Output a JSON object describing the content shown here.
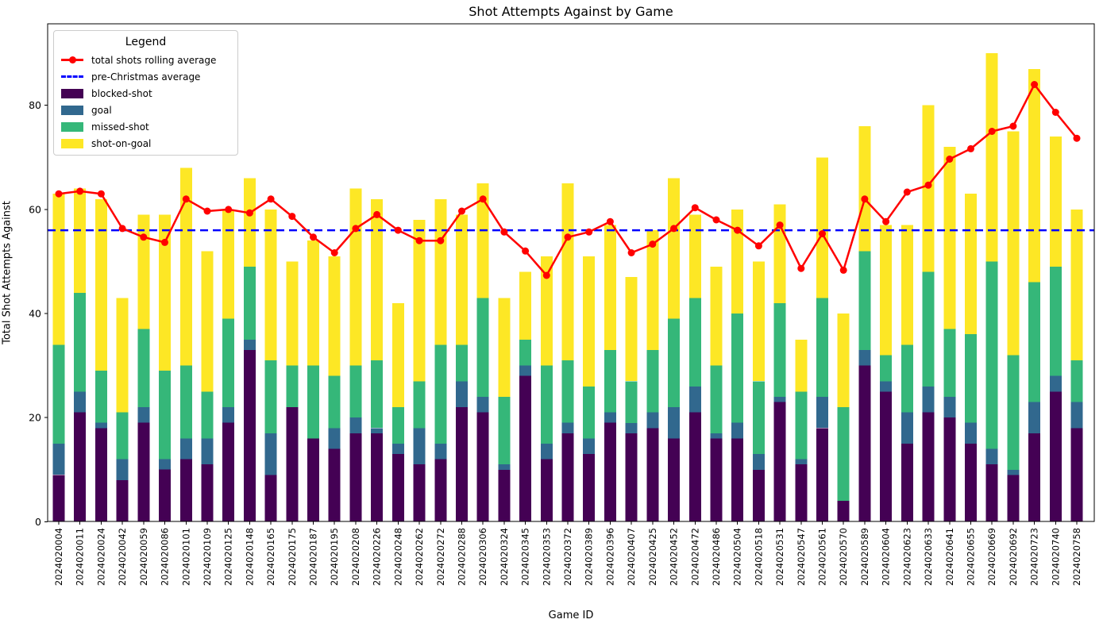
{
  "title": "Shot Attempts Against by Game",
  "axes": {
    "x_label": "Game ID",
    "y_label": "Total Shot Attempts Against",
    "y_ticks": [
      0,
      20,
      40,
      60,
      80
    ],
    "ylim": [
      0,
      95.6
    ],
    "grid": false
  },
  "legend": {
    "title": "Legend",
    "position": "upper left",
    "entries": [
      {
        "label": "total shots rolling average",
        "type": "line-marker",
        "color": "#ff0000"
      },
      {
        "label": "pre-Christmas average",
        "type": "dashed-line",
        "color": "#0000ff"
      },
      {
        "label": "blocked-shot",
        "type": "patch",
        "color": "#440154"
      },
      {
        "label": "goal",
        "type": "patch",
        "color": "#31688e"
      },
      {
        "label": "missed-shot",
        "type": "patch",
        "color": "#35b779"
      },
      {
        "label": "shot-on-goal",
        "type": "patch",
        "color": "#fde725"
      }
    ]
  },
  "colors": {
    "blocked_shot": "#440154",
    "goal": "#31688e",
    "missed_shot": "#35b779",
    "shot_on_goal": "#fde725",
    "rolling_average_line": "#ff0000",
    "pre_christmas_line": "#0000ff",
    "axis": "#000000"
  },
  "chart_data": {
    "type": "bar",
    "stacked": true,
    "title": "Shot Attempts Against by Game",
    "xlabel": "Game ID",
    "ylabel": "Total Shot Attempts Against",
    "ylim": [
      0,
      95.6
    ],
    "legend_position": "upper left",
    "grid": false,
    "categories": [
      "2024020004",
      "2024020011",
      "2024020024",
      "2024020042",
      "2024020059",
      "2024020086",
      "2024020101",
      "2024020109",
      "2024020125",
      "2024020148",
      "2024020165",
      "2024020175",
      "2024020187",
      "2024020195",
      "2024020208",
      "2024020226",
      "2024020248",
      "2024020262",
      "2024020272",
      "2024020288",
      "2024020306",
      "2024020324",
      "2024020345",
      "2024020353",
      "2024020372",
      "2024020389",
      "2024020396",
      "2024020407",
      "2024020425",
      "2024020452",
      "2024020472",
      "2024020486",
      "2024020504",
      "2024020518",
      "2024020531",
      "2024020547",
      "2024020561",
      "2024020570",
      "2024020589",
      "2024020604",
      "2024020623",
      "2024020633",
      "2024020641",
      "2024020655",
      "2024020669",
      "2024020692",
      "2024020723",
      "2024020740",
      "2024020758"
    ],
    "series": [
      {
        "name": "blocked-shot",
        "color": "#440154",
        "values": [
          9,
          21,
          18,
          8,
          19,
          10,
          12,
          11,
          19,
          33,
          9,
          22,
          16,
          14,
          17,
          17,
          13,
          11,
          12,
          22,
          21,
          10,
          28,
          12,
          17,
          13,
          19,
          17,
          18,
          16,
          21,
          16,
          16,
          10,
          23,
          11,
          18,
          4,
          30,
          25,
          15,
          21,
          20,
          15,
          11,
          9,
          17,
          25,
          18
        ]
      },
      {
        "name": "goal",
        "color": "#31688e",
        "values": [
          6,
          4,
          1,
          4,
          3,
          2,
          4,
          5,
          3,
          2,
          8,
          0,
          0,
          4,
          3,
          1,
          2,
          7,
          3,
          5,
          3,
          1,
          2,
          3,
          2,
          3,
          2,
          2,
          3,
          6,
          5,
          1,
          3,
          3,
          1,
          1,
          6,
          0,
          3,
          2,
          6,
          5,
          4,
          4,
          3,
          1,
          6,
          3,
          5
        ]
      },
      {
        "name": "missed-shot",
        "color": "#35b779",
        "values": [
          19,
          19,
          10,
          9,
          15,
          17,
          14,
          9,
          17,
          14,
          14,
          8,
          14,
          10,
          10,
          13,
          7,
          9,
          19,
          7,
          19,
          13,
          5,
          15,
          12,
          10,
          12,
          8,
          12,
          17,
          17,
          13,
          21,
          14,
          18,
          13,
          19,
          18,
          19,
          5,
          13,
          22,
          13,
          17,
          36,
          22,
          23,
          21,
          8
        ]
      },
      {
        "name": "shot-on-goal",
        "color": "#fde725",
        "values": [
          29,
          20,
          33,
          22,
          22,
          30,
          38,
          27,
          21,
          17,
          29,
          20,
          24,
          23,
          34,
          31,
          20,
          31,
          28,
          25,
          22,
          19,
          13,
          21,
          34,
          25,
          24,
          20,
          23,
          27,
          16,
          19,
          20,
          23,
          19,
          10,
          27,
          18,
          24,
          25,
          23,
          32,
          35,
          27,
          40,
          43,
          41,
          25,
          29
        ]
      }
    ],
    "bar_totals": [
      63,
      64,
      62,
      43,
      59,
      59,
      68,
      52,
      60,
      66,
      60,
      50,
      54,
      51,
      64,
      62,
      42,
      58,
      62,
      59,
      65,
      43,
      48,
      51,
      65,
      51,
      57,
      47,
      56,
      66,
      59,
      49,
      60,
      50,
      61,
      35,
      70,
      40,
      76,
      57,
      57,
      80,
      72,
      63,
      90,
      75,
      87,
      74,
      60
    ],
    "line_series": {
      "name": "total shots rolling average",
      "color": "#ff0000",
      "marker": "circle",
      "values": [
        63.0,
        63.5,
        63.0,
        56.33,
        54.67,
        53.67,
        62.0,
        59.67,
        60.0,
        59.33,
        62.0,
        58.67,
        54.67,
        51.67,
        56.33,
        59.0,
        56.0,
        54.0,
        54.0,
        59.67,
        62.0,
        55.67,
        52.0,
        47.33,
        54.67,
        55.67,
        57.67,
        51.67,
        53.33,
        56.33,
        60.33,
        58.0,
        56.0,
        53.0,
        57.0,
        48.67,
        55.33,
        48.33,
        62.0,
        57.67,
        63.33,
        64.67,
        69.67,
        71.67,
        75.0,
        76.0,
        84.0,
        78.67,
        73.67
      ]
    },
    "reference_line": {
      "name": "pre-Christmas average",
      "color": "#0000ff",
      "style": "dashed",
      "value": 56.0
    }
  }
}
